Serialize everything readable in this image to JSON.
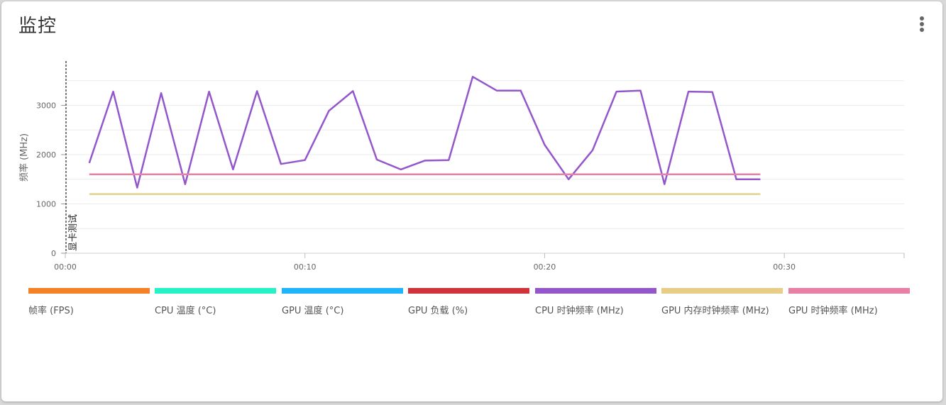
{
  "card": {
    "title": "监控"
  },
  "chart_data": {
    "type": "line",
    "xlabel": "",
    "ylabel": "频率 (MHz)",
    "ylim": [
      0,
      3900
    ],
    "xlim": [
      0,
      35
    ],
    "yticks": [
      0,
      1000,
      2000,
      3000
    ],
    "xticks": [
      {
        "value": 0,
        "label": "00:00"
      },
      {
        "value": 10,
        "label": "00:10"
      },
      {
        "value": 20,
        "label": "00:20"
      },
      {
        "value": 30,
        "label": "00:30"
      }
    ],
    "grid": true,
    "marker": {
      "x": 0,
      "label": "显卡测试"
    },
    "series": [
      {
        "name": "CPU 时钟频率 (MHz)",
        "color": "#9457cb",
        "x": [
          1,
          2,
          3,
          4,
          5,
          6,
          7,
          8,
          9,
          10,
          11,
          12,
          13,
          14,
          15,
          16,
          17,
          18,
          19,
          20,
          21,
          22,
          23,
          24,
          25,
          26,
          27,
          28,
          29
        ],
        "values": [
          1830,
          3280,
          1330,
          3250,
          1400,
          3280,
          1700,
          3290,
          1810,
          1890,
          2890,
          3290,
          1900,
          1700,
          1880,
          1890,
          3580,
          3300,
          3300,
          2200,
          1500,
          2090,
          3280,
          3300,
          1400,
          3280,
          3270,
          1500,
          1500
        ]
      },
      {
        "name": "GPU 时钟频率 (MHz)",
        "color": "#e97fa4",
        "x": [
          1,
          29
        ],
        "values": [
          1600,
          1600
        ]
      },
      {
        "name": "GPU 内存时钟频率 (MHz)",
        "color": "#e1d38e",
        "x": [
          1,
          29
        ],
        "values": [
          1200,
          1200
        ]
      }
    ],
    "legend_position": "bottom",
    "legend": [
      {
        "label": "帧率 (FPS)",
        "color": "#f48126"
      },
      {
        "label": "CPU 温度 (°C)",
        "color": "#27f2c5"
      },
      {
        "label": "GPU 温度 (°C)",
        "color": "#1fb5fb"
      },
      {
        "label": "GPU 负载 (%)",
        "color": "#d03339"
      },
      {
        "label": "CPU 时钟频率 (MHz)",
        "color": "#9457cb"
      },
      {
        "label": "GPU 内存时钟频率 (MHz)",
        "color": "#e8cd87"
      },
      {
        "label": "GPU 时钟频率 (MHz)",
        "color": "#ea7fa5"
      }
    ]
  }
}
